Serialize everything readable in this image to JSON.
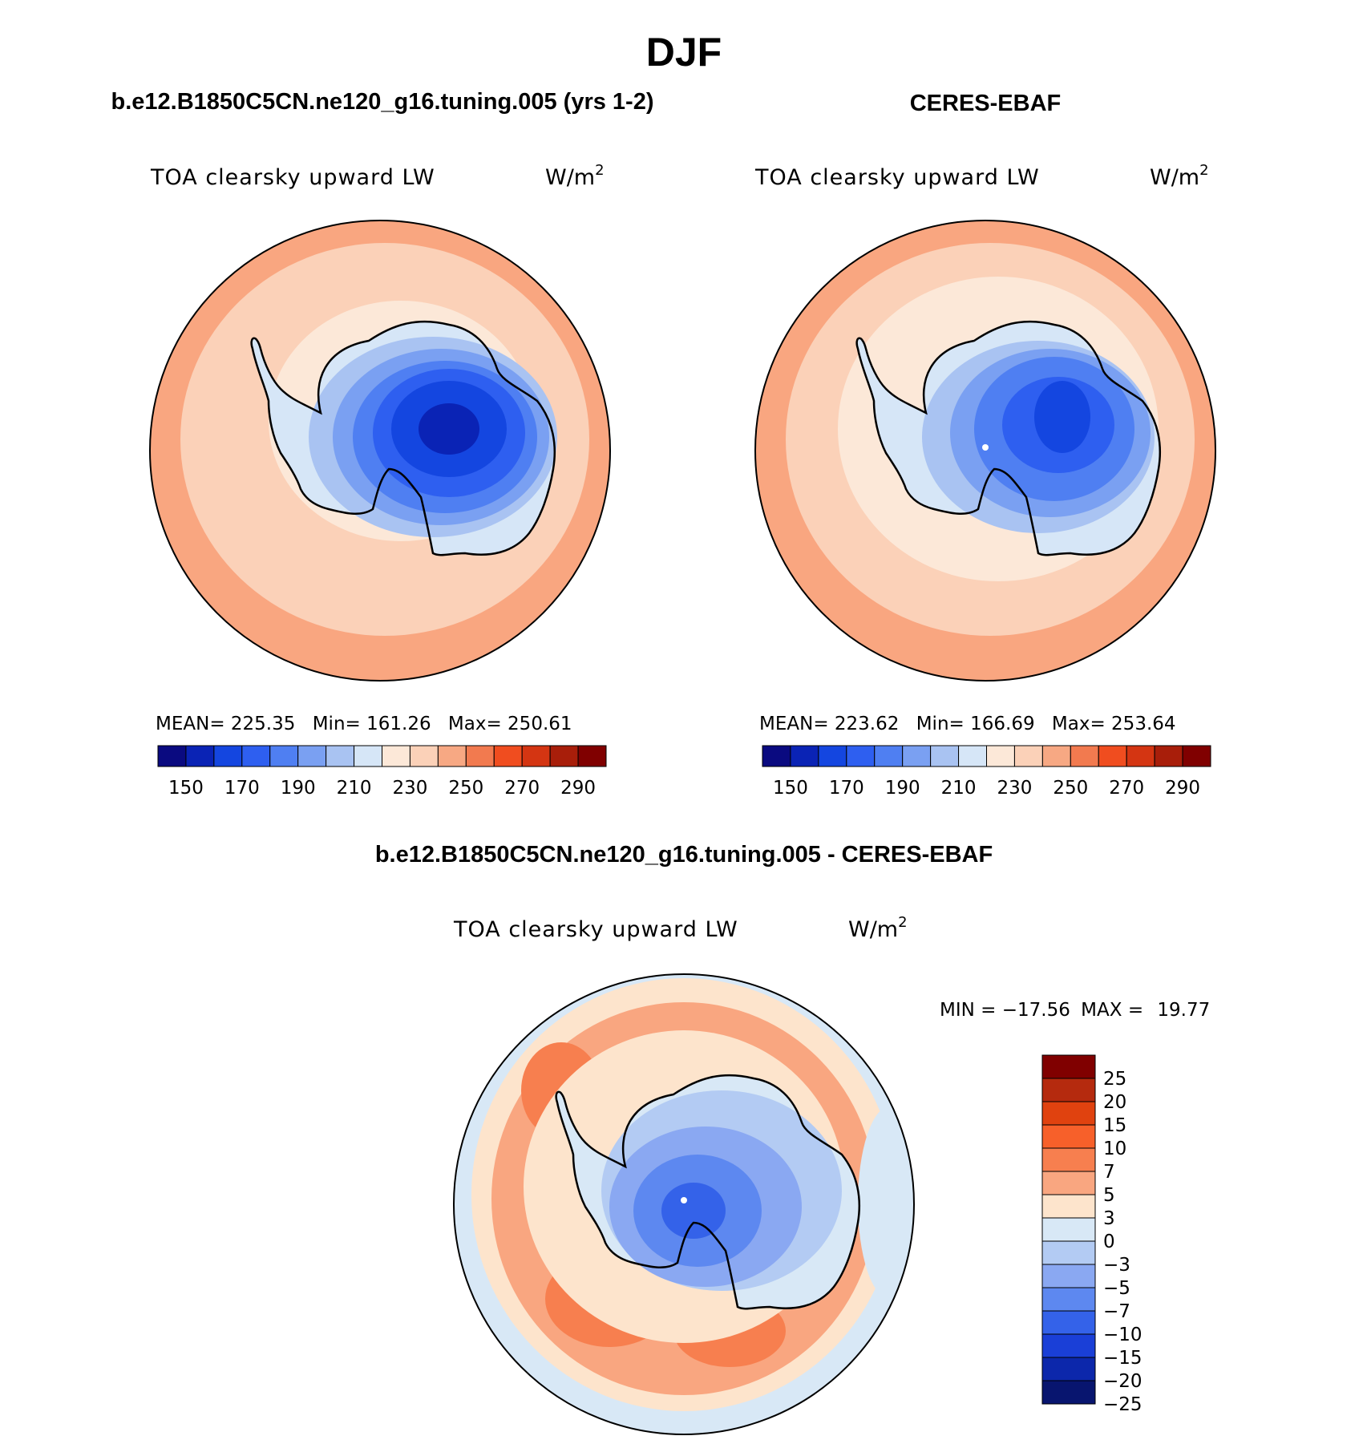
{
  "season": "DJF",
  "field_name": "TOA clearsky upward LW",
  "units": {
    "base": "W/m",
    "exponent": "2"
  },
  "panels": [
    {
      "title": "b.e12.B1850C5CN.ne120_g16.tuning.005 (yrs 1-2)",
      "stats": {
        "mean_label": "MEAN=",
        "mean": "225.35",
        "min_label": "Min=",
        "min": "161.26",
        "max_label": "Max=",
        "max": "250.61"
      }
    },
    {
      "title": "CERES-EBAF",
      "stats": {
        "mean_label": "MEAN=",
        "mean": "223.62",
        "min_label": "Min=",
        "min": "166.69",
        "max_label": "Max=",
        "max": "253.64"
      }
    }
  ],
  "difference_panel": {
    "title": "b.e12.B1850C5CN.ne120_g16.tuning.005 - CERES-EBAF",
    "stats": {
      "min_label": "MIN =",
      "min": "−17.56",
      "max_label": "MAX =",
      "max": "19.77"
    }
  },
  "absolute_colorbar": {
    "colors": [
      "#0a0a80",
      "#0a23b5",
      "#1446e0",
      "#2e5ff0",
      "#4f7ff2",
      "#7aa0f2",
      "#a9c3f2",
      "#d6e6f7",
      "#fce8d8",
      "#fbd1b8",
      "#f7a883",
      "#f27a4f",
      "#f04d1f",
      "#d43512",
      "#a81e0a",
      "#800000"
    ],
    "labels": [
      "150",
      "170",
      "190",
      "210",
      "230",
      "250",
      "270",
      "290"
    ]
  },
  "difference_colorbar": {
    "colors": [
      "#800000",
      "#b52a0e",
      "#e0420f",
      "#f7602a",
      "#f77f4f",
      "#f9a680",
      "#fde4cc",
      "#d8e8f6",
      "#b3cbf3",
      "#8aa8f2",
      "#5d88f0",
      "#3462e9",
      "#1a3fd7",
      "#0c27ab",
      "#08156f"
    ],
    "labels": [
      "25",
      "20",
      "15",
      "10",
      "7",
      "5",
      "3",
      "0",
      "−3",
      "−5",
      "−7",
      "−10",
      "−15",
      "−20",
      "−25"
    ]
  },
  "map_colors": {
    "ocean_warm": "#f9a680",
    "ocean_mid": "#fbd1b8",
    "ocean_light": "#fce8d8",
    "coast_blue": "#d6e6f7",
    "ice_1": "#a9c3f2",
    "ice_2": "#7aa0f2",
    "ice_3": "#4f7ff2",
    "ice_4": "#2e5ff0",
    "ice_5": "#1446e0",
    "ice_6": "#0a23b5",
    "diff_red": "#f77f4f",
    "diff_orange": "#f9a680",
    "diff_pale": "#fde4cc",
    "diff_blue_pale": "#d8e8f6",
    "diff_blue_1": "#b3cbf3",
    "diff_blue_2": "#8aa8f2",
    "diff_blue_3": "#5d88f0",
    "diff_blue_4": "#3462e9"
  }
}
